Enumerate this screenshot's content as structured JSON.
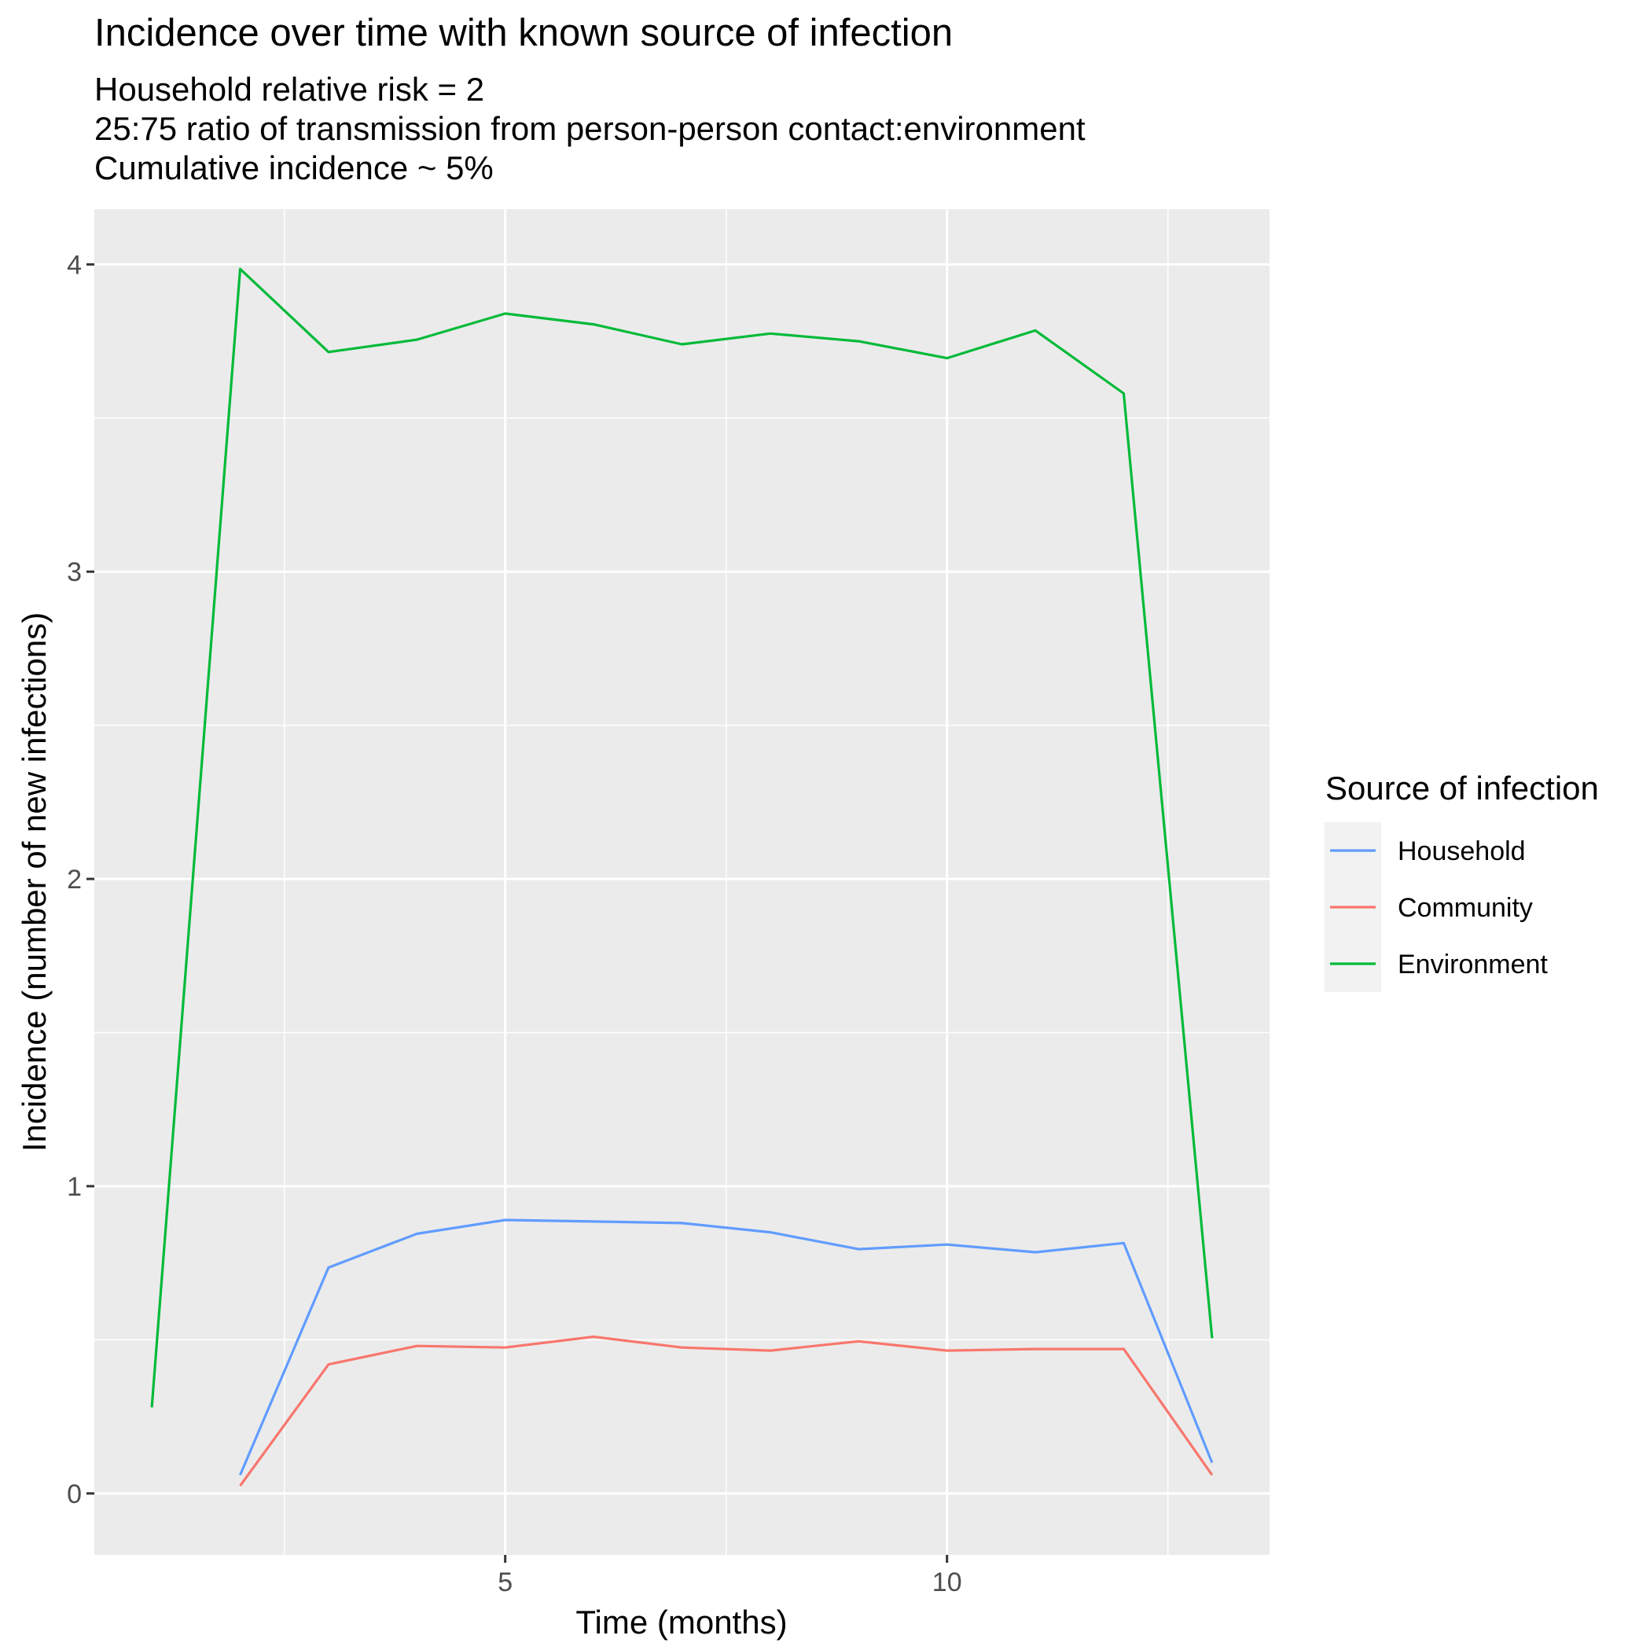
{
  "chart_data": {
    "type": "line",
    "title": "Incidence over time with known source of infection",
    "subtitle_lines": [
      "Household relative risk = 2",
      "25:75 ratio of transmission from person-person contact:environment",
      "Cumulative incidence ~ 5%"
    ],
    "xlabel": "Time (months)",
    "ylabel": "Incidence (number of new infections)",
    "xlim": [
      0.35,
      13.65
    ],
    "ylim": [
      -0.2,
      4.18
    ],
    "x_ticks": [
      5,
      10
    ],
    "x_tick_labels": [
      "5",
      "10"
    ],
    "x_minor_gridlines": [
      2.5,
      7.5,
      12.5
    ],
    "y_ticks": [
      0,
      1,
      2,
      3,
      4
    ],
    "y_tick_labels": [
      "0",
      "1",
      "2",
      "3",
      "4"
    ],
    "y_minor_gridlines": [
      0.5,
      1.5,
      2.5,
      3.5
    ],
    "grid": true,
    "legend": {
      "title": "Source of infection",
      "position": "right",
      "entries": [
        "Household",
        "Community",
        "Environment"
      ]
    },
    "series": [
      {
        "name": "Household",
        "color": "#619CFF",
        "x": [
          2,
          3,
          4,
          5,
          6,
          7,
          8,
          9,
          10,
          11,
          12,
          13
        ],
        "y": [
          0.06,
          0.735,
          0.845,
          0.89,
          0.885,
          0.88,
          0.85,
          0.795,
          0.81,
          0.785,
          0.815,
          0.1
        ]
      },
      {
        "name": "Community",
        "color": "#F8766D",
        "x": [
          2,
          3,
          4,
          5,
          6,
          7,
          8,
          9,
          10,
          11,
          12,
          13
        ],
        "y": [
          0.025,
          0.42,
          0.48,
          0.475,
          0.51,
          0.475,
          0.465,
          0.495,
          0.465,
          0.47,
          0.47,
          0.06
        ]
      },
      {
        "name": "Environment",
        "color": "#00BA38",
        "x": [
          1,
          2,
          3,
          4,
          5,
          6,
          7,
          8,
          9,
          10,
          11,
          12,
          13
        ],
        "y": [
          0.28,
          3.985,
          3.715,
          3.755,
          3.84,
          3.805,
          3.74,
          3.775,
          3.75,
          3.695,
          3.785,
          3.58,
          0.505
        ]
      }
    ]
  }
}
